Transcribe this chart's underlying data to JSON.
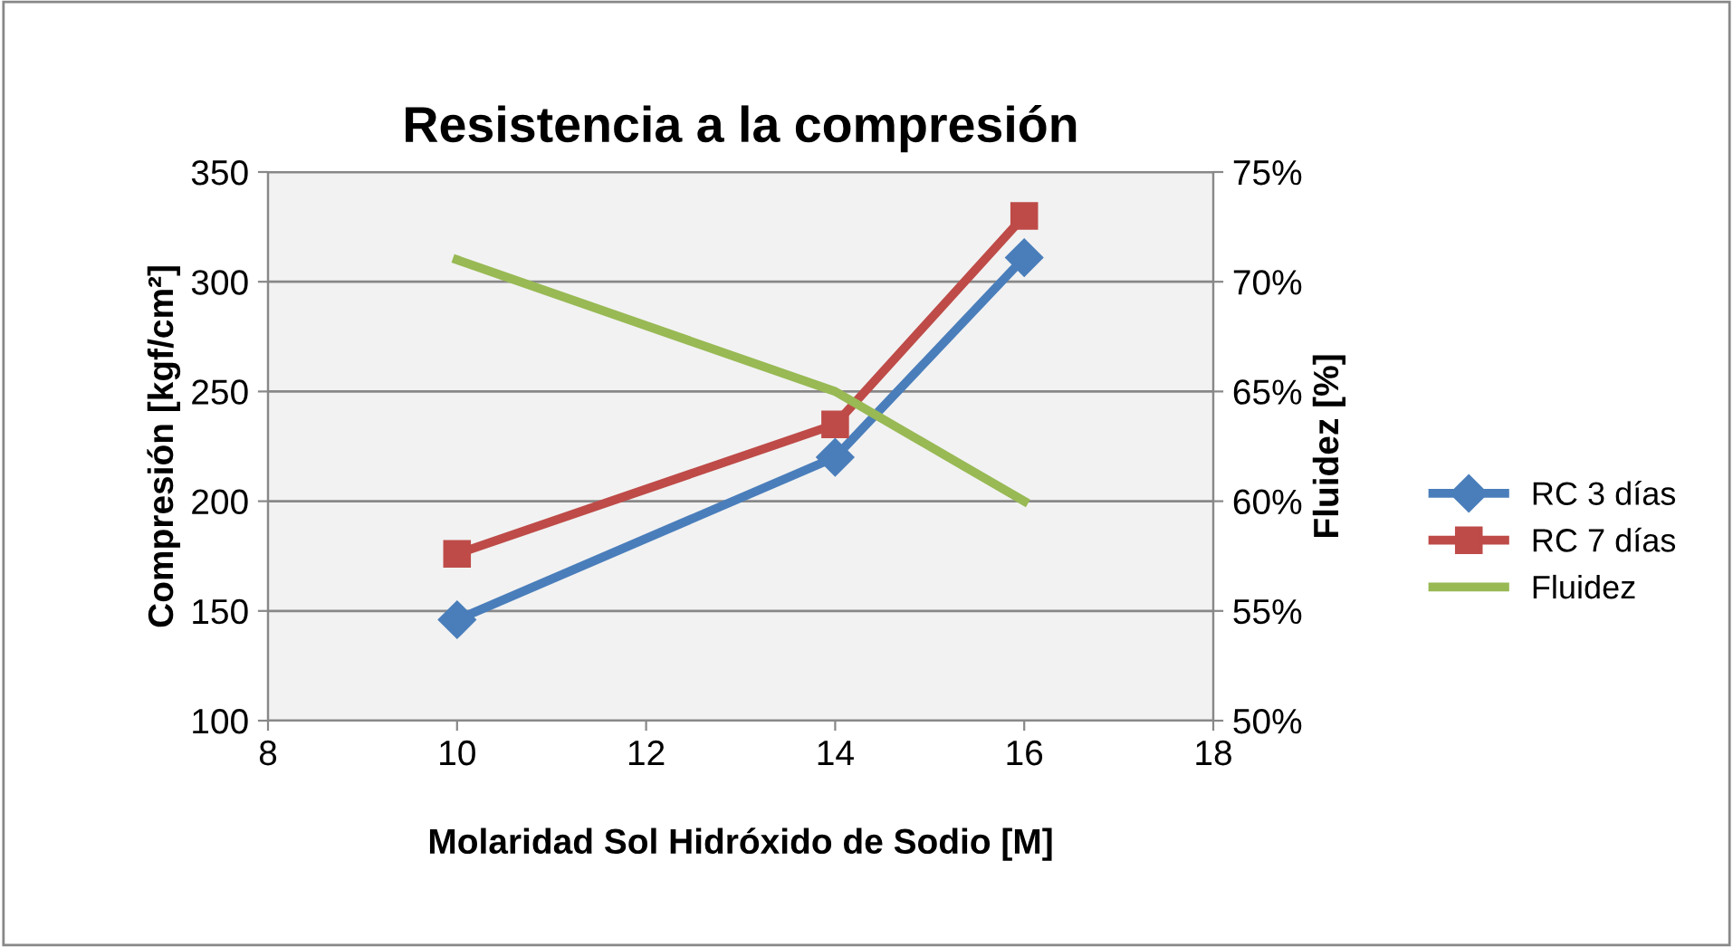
{
  "chart_data": {
    "type": "line",
    "title": "Resistencia a la compresión",
    "xlabel": "Molaridad Sol Hidróxido de Sodio [M]",
    "ylabel": "Compresión [kgf/cm²]",
    "y2label": "Fluidez [%]",
    "xlim": [
      8,
      18
    ],
    "xticks": [
      8,
      10,
      12,
      14,
      16,
      18
    ],
    "ylim": [
      100,
      350
    ],
    "yticks": [
      100,
      150,
      200,
      250,
      300,
      350
    ],
    "y2lim": [
      50,
      75
    ],
    "y2ticks": [
      {
        "value": 50,
        "label": "50%"
      },
      {
        "value": 55,
        "label": "55%"
      },
      {
        "value": 60,
        "label": "60%"
      },
      {
        "value": 65,
        "label": "65%"
      },
      {
        "value": 70,
        "label": "70%"
      },
      {
        "value": 75,
        "label": "75%"
      }
    ],
    "grid": "y",
    "legend": "right",
    "series": [
      {
        "name": "RC 3 días",
        "color": "#4a7ebb",
        "x": [
          10,
          14,
          16
        ],
        "values": [
          146,
          220,
          311
        ],
        "marker": "diamond"
      },
      {
        "name": "RC 7 días",
        "color": "#be4b48",
        "x": [
          10,
          14,
          16
        ],
        "values": [
          176,
          235,
          330
        ],
        "marker": "square"
      },
      {
        "name": "Fluidez",
        "color": "#98b954",
        "x": [
          10,
          14,
          16
        ],
        "values": [
          71,
          65,
          60
        ],
        "axis": "y2",
        "marker": "none"
      }
    ]
  }
}
